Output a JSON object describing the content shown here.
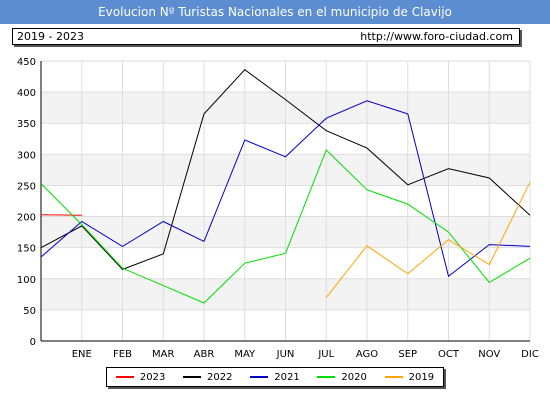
{
  "header": {
    "title": "Evolucion Nº Turistas Nacionales en el municipio de Clavijo",
    "period": "2019 - 2023",
    "url": "http://www.foro-ciudad.com"
  },
  "chart_data": {
    "type": "line",
    "categories": [
      "ENE",
      "FEB",
      "MAR",
      "ABR",
      "MAY",
      "JUN",
      "JUL",
      "AGO",
      "SEP",
      "OCT",
      "NOV",
      "DIC"
    ],
    "yticks": [
      0,
      50,
      100,
      150,
      200,
      250,
      300,
      350,
      400,
      450
    ],
    "ylim": [
      0,
      450
    ],
    "grid": true,
    "legend_position": "bottom",
    "series": [
      {
        "name": "2023",
        "color": "#ff0000",
        "x": [
          0.0,
          1.0
        ],
        "values": [
          203,
          202
        ]
      },
      {
        "name": "2022",
        "color": "#000000",
        "x": [
          0,
          1,
          2,
          3,
          4,
          5,
          6,
          7,
          8,
          9,
          10,
          11,
          12
        ],
        "values": [
          150,
          185,
          115,
          140,
          365,
          436,
          388,
          338,
          310,
          251,
          277,
          262,
          202
        ]
      },
      {
        "name": "2021",
        "color": "#0000cc",
        "x": [
          0,
          1,
          2,
          3,
          4,
          5,
          6,
          7,
          8,
          9,
          10,
          11,
          12
        ],
        "values": [
          135,
          192,
          152,
          192,
          160,
          323,
          296,
          358,
          386,
          365,
          104,
          155,
          152
        ]
      },
      {
        "name": "2020",
        "color": "#00dd00",
        "x": [
          0,
          1,
          2,
          3,
          4,
          5,
          6,
          7,
          8,
          9,
          10,
          11,
          12
        ],
        "values": [
          253,
          187,
          117,
          89,
          61,
          125,
          141,
          307,
          243,
          220,
          175,
          94,
          133
        ]
      },
      {
        "name": "2019",
        "color": "#ffa500",
        "x": [
          7,
          8,
          9,
          10,
          11,
          12
        ],
        "values": [
          70,
          153,
          108,
          163,
          123,
          255
        ]
      }
    ]
  }
}
